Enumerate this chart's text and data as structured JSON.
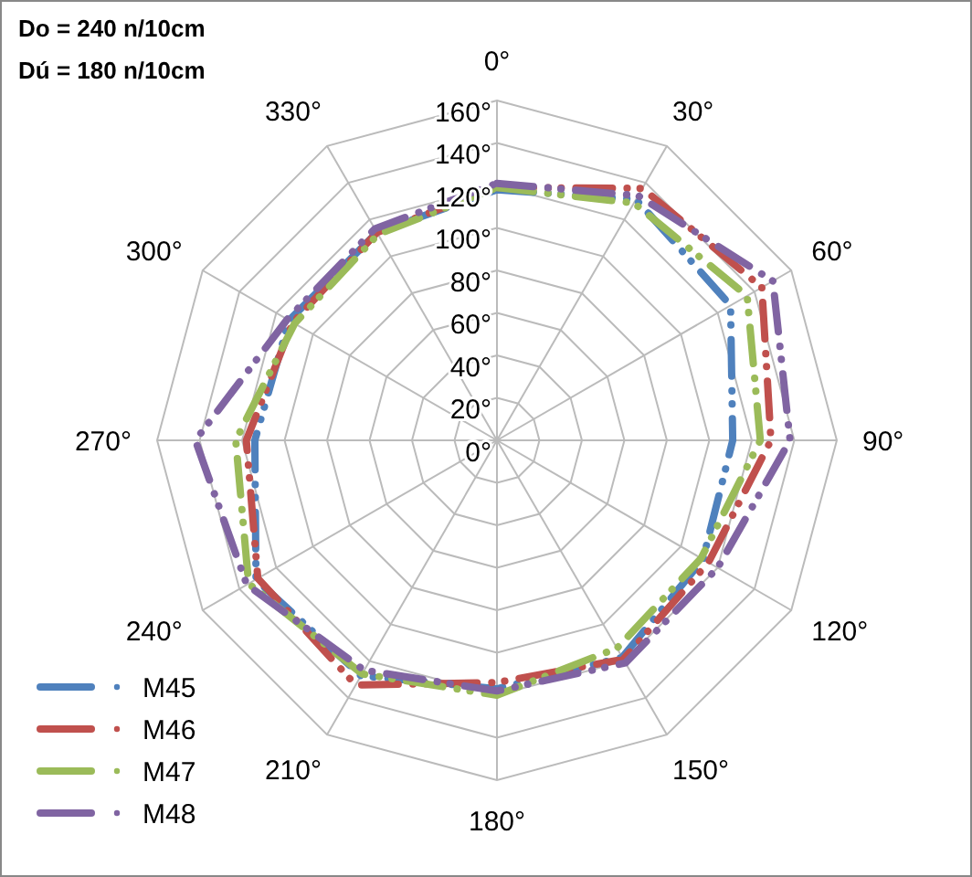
{
  "chart_data": {
    "type": "radar",
    "categories": [
      "0°",
      "30°",
      "60°",
      "90°",
      "120°",
      "150°",
      "180°",
      "210°",
      "240°",
      "270°",
      "300°",
      "330°"
    ],
    "series": [
      {
        "name": "M45",
        "color": "#4f81bd",
        "values": [
          118,
          131,
          127,
          111,
          112,
          118,
          117,
          128,
          131,
          114,
          113,
          113
        ]
      },
      {
        "name": "M46",
        "color": "#c0504d",
        "values": [
          119,
          137,
          144,
          129,
          115,
          119,
          114,
          133,
          130,
          118,
          111,
          113
        ]
      },
      {
        "name": "M47",
        "color": "#9bbb59",
        "values": [
          119,
          129,
          136,
          124,
          111,
          113,
          120,
          127,
          135,
          123,
          110,
          112
        ]
      },
      {
        "name": "M48",
        "color": "#8064a2",
        "values": [
          121,
          133,
          150,
          138,
          120,
          121,
          118,
          125,
          136,
          142,
          114,
          115
        ]
      }
    ],
    "ylim": [
      0,
      160
    ],
    "yticks": [
      {
        "value": 0,
        "label": "0°"
      },
      {
        "value": 20,
        "label": "20°"
      },
      {
        "value": 40,
        "label": "40°"
      },
      {
        "value": 60,
        "label": "60°"
      },
      {
        "value": 80,
        "label": "80°"
      },
      {
        "value": 100,
        "label": "100°"
      },
      {
        "value": 120,
        "label": "120°"
      },
      {
        "value": 140,
        "label": "140°"
      },
      {
        "value": 160,
        "label": "160°"
      }
    ],
    "annotations": [
      "Do = 240 n/10cm",
      "Dú = 180 n/10cm"
    ],
    "grid": true,
    "legend": "bottom left",
    "line_style": "dashed"
  }
}
